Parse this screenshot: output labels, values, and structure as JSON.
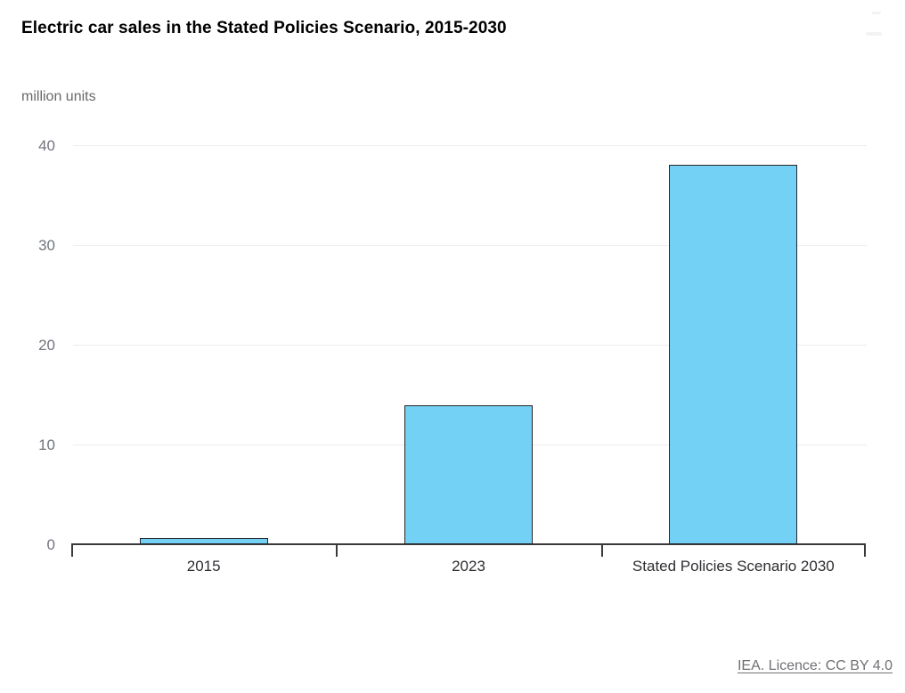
{
  "header": {
    "title": "Electric car sales in the Stated Policies Scenario, 2015-2030"
  },
  "chart_data": {
    "type": "bar",
    "title": "Electric car sales in the Stated Policies Scenario, 2015-2030",
    "unit_label": "million units",
    "categories": [
      "2015",
      "2023",
      "Stated Policies Scenario 2030"
    ],
    "values": [
      0.6,
      13.9,
      38
    ],
    "yticks": [
      0,
      10,
      20,
      30,
      40
    ],
    "ylim": [
      0,
      40
    ],
    "xlabel": "",
    "ylabel": "million units",
    "grid": "horizontal",
    "legend": "none",
    "bar_fill": "#74d1f6",
    "bar_border": "#27272a"
  },
  "footer": {
    "licence_link": "IEA. Licence: CC BY 4.0"
  }
}
